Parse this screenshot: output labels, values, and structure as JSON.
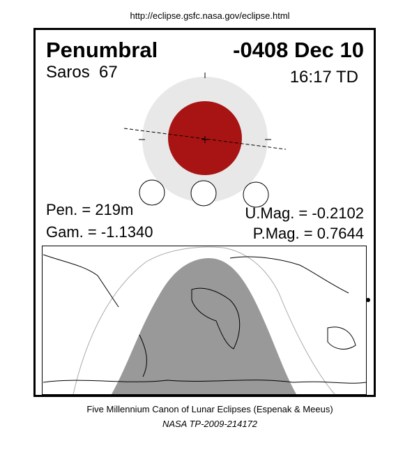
{
  "header": {
    "url": "http://eclipse.gsfc.nasa.gov/eclipse.html"
  },
  "eclipse": {
    "type": "Penumbral",
    "date": "-0408 Dec 10",
    "saros": "Saros  67",
    "time": "16:17 TD",
    "pen": "Pen. = 219m",
    "gam": "Gam. = -1.1340",
    "umag": "U.Mag. = -0.2102",
    "pmag": "P.Mag. = 0.7644"
  },
  "footer": {
    "line1": "Five Millennium Canon of Lunar Eclipses (Espenak & Meeus)",
    "line2": "NASA TP-2009-214172"
  }
}
